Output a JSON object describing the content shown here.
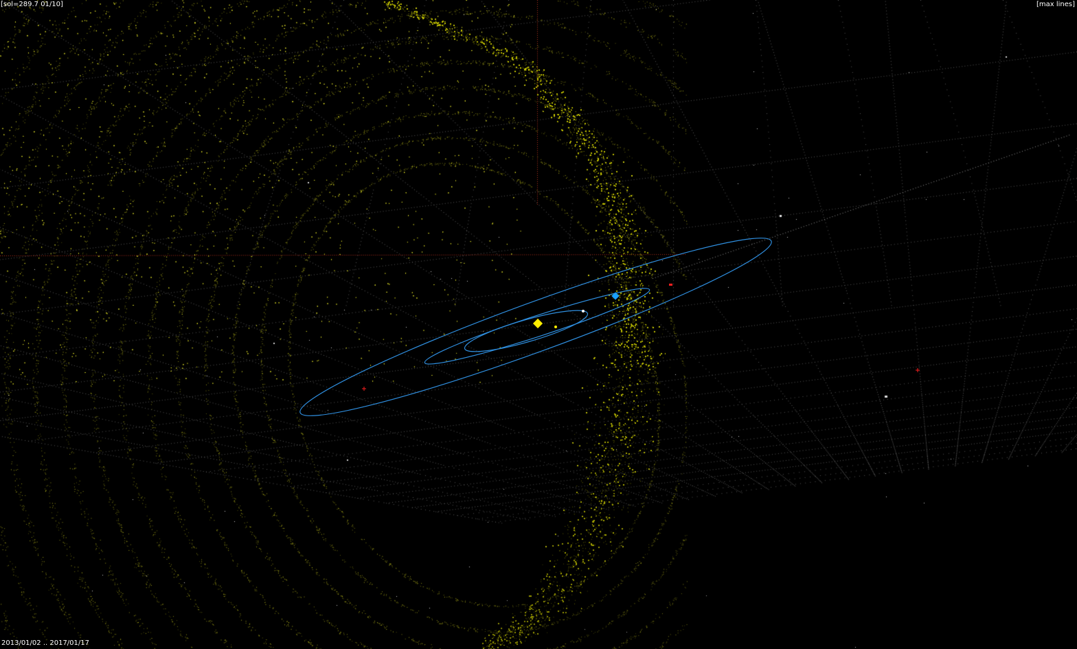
{
  "hud": {
    "status": "[sol=289.7 01/10]",
    "max_lines": "[max lines]",
    "date_range": "2013/01/02 .. 2017/01/17"
  },
  "colors": {
    "background": "#000000",
    "grid": "#5a5a5a",
    "axis_lines": "#b8321f",
    "orbit": "#2f8fe0",
    "particles": "#d8d820",
    "particles_dense": "#c4c400",
    "sun": "#ffee00",
    "spacecraft": "#1aa0ff",
    "mars_marker": "#ff2020",
    "stars": "#d0d0d0",
    "hud_text": "#ffffff"
  },
  "scene": {
    "bodies": [
      "sun",
      "spacecraft",
      "mars-marker"
    ],
    "layers": [
      "perspective-grid",
      "dust-particle-rings",
      "dense-dust-stream",
      "planet-orbits",
      "background-stars"
    ]
  }
}
